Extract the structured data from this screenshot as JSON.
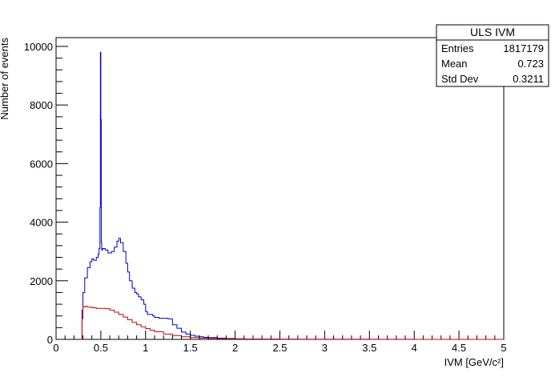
{
  "chart_data": {
    "type": "line",
    "title": "",
    "xlabel": "IVM [GeV/c²]",
    "ylabel": "Number of events",
    "xlim": [
      0,
      5
    ],
    "ylim": [
      0,
      10300
    ],
    "grid": false,
    "x_ticks": [
      0,
      0.5,
      1,
      1.5,
      2,
      2.5,
      3,
      3.5,
      4,
      4.5,
      5
    ],
    "x_tick_labels": [
      "0",
      "0.5",
      "1",
      "1.5",
      "2",
      "2.5",
      "3",
      "3.5",
      "4",
      "4.5",
      "5"
    ],
    "y_ticks": [
      0,
      2000,
      4000,
      6000,
      8000,
      10000
    ],
    "y_tick_labels": [
      "0",
      "2000",
      "4000",
      "6000",
      "8000",
      "10000"
    ],
    "stats_box": {
      "title": "ULS IVM",
      "rows": [
        {
          "label": "Entries",
          "value": "1817179"
        },
        {
          "label": "Mean",
          "value": "0.723"
        },
        {
          "label": "Std Dev",
          "value": "0.3211"
        }
      ]
    },
    "series": [
      {
        "color": "#0000cc",
        "x": [
          0.28,
          0.29,
          0.3,
          0.32,
          0.35,
          0.38,
          0.4,
          0.42,
          0.45,
          0.47,
          0.48,
          0.49,
          0.495,
          0.5,
          0.505,
          0.51,
          0.52,
          0.55,
          0.58,
          0.6,
          0.62,
          0.65,
          0.68,
          0.7,
          0.72,
          0.75,
          0.78,
          0.8,
          0.82,
          0.85,
          0.88,
          0.9,
          0.92,
          0.95,
          0.98,
          1.0,
          1.02,
          1.05,
          1.08,
          1.1,
          1.15,
          1.2,
          1.25,
          1.3,
          1.35,
          1.4,
          1.45,
          1.5,
          1.55,
          1.6,
          1.65,
          1.7,
          1.8,
          1.9,
          2.0,
          2.1,
          2.2,
          2.3,
          2.5,
          2.7,
          2.9,
          3.0,
          3.5,
          4.0,
          4.5,
          5.0
        ],
        "y": [
          0,
          1000,
          1600,
          2100,
          2450,
          2650,
          2750,
          2700,
          2800,
          2900,
          3100,
          4500,
          9800,
          7500,
          3300,
          3050,
          3100,
          3050,
          2950,
          2950,
          3000,
          3150,
          3350,
          3450,
          3300,
          3000,
          2600,
          2300,
          2000,
          1750,
          1600,
          1550,
          1450,
          1350,
          1200,
          950,
          850,
          850,
          800,
          750,
          720,
          720,
          700,
          500,
          380,
          250,
          180,
          140,
          110,
          90,
          70,
          60,
          40,
          30,
          20,
          15,
          12,
          10,
          6,
          4,
          3,
          2,
          1,
          1,
          0,
          0
        ]
      },
      {
        "color": "#cc0000",
        "x": [
          0.28,
          0.29,
          0.3,
          0.32,
          0.35,
          0.4,
          0.45,
          0.5,
          0.55,
          0.6,
          0.65,
          0.7,
          0.75,
          0.8,
          0.85,
          0.9,
          0.95,
          1.0,
          1.05,
          1.1,
          1.2,
          1.3,
          1.4,
          1.5,
          1.6,
          1.7,
          1.8,
          1.9,
          2.0,
          2.2,
          2.5,
          3.0,
          3.5,
          4.0,
          5.0
        ],
        "y": [
          0,
          700,
          1100,
          1130,
          1100,
          1080,
          1060,
          1060,
          1050,
          1000,
          930,
          850,
          760,
          670,
          580,
          500,
          430,
          370,
          310,
          260,
          180,
          130,
          90,
          60,
          45,
          35,
          25,
          18,
          12,
          8,
          5,
          3,
          2,
          1,
          0
        ]
      }
    ]
  }
}
